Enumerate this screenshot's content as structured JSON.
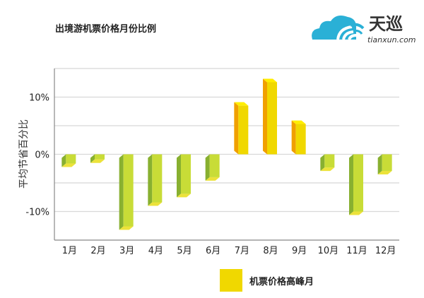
{
  "logo": {
    "name": "天巡",
    "domain": "tianxun.com"
  },
  "colors": {
    "positive_front": "#f0d800",
    "positive_side": "#f0a000",
    "positive_top": "#ffee00",
    "negative_front": "#c8dc37",
    "negative_side": "#88b030",
    "negative_top": "#ece23a",
    "grid": "#d8d8d8",
    "axis": "#888888"
  },
  "chart_data": {
    "type": "bar",
    "title": "出境游机票价格月份比例",
    "xlabel": "",
    "ylabel": "平均节省百分比",
    "categories": [
      "1月",
      "2月",
      "3月",
      "4月",
      "5月",
      "6月",
      "7月",
      "8月",
      "9月",
      "10月",
      "11月",
      "12月"
    ],
    "values": [
      -1.6,
      -0.9,
      -12.6,
      -8.4,
      -6.9,
      -4.0,
      8.5,
      12.6,
      5.3,
      -2.3,
      -10.0,
      -2.9
    ],
    "ylim": [
      -15,
      15
    ],
    "yticks": [
      10,
      0,
      -10
    ],
    "ytick_labels": [
      "10%",
      "0%",
      "-10%"
    ],
    "gridlines": [
      15,
      10,
      5,
      0,
      -5,
      -10
    ],
    "grid": true,
    "legend": [
      {
        "label": "机票价格高峰月"
      }
    ],
    "legend_position": "bottom"
  }
}
